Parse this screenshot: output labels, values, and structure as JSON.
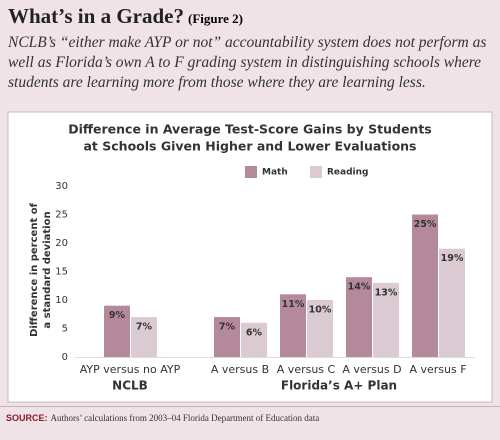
{
  "header": {
    "title": "What’s in a Grade?",
    "figure": "(Figure 2)",
    "text": "NCLB’s “either make AYP or not” accountability system does not perform as well as Florida’s own A to F grading system in distinguishing schools where students are learning more from those where they are learning less."
  },
  "chart_data": {
    "type": "bar",
    "title": [
      "Difference in Average Test-Score Gains by Students",
      "at Schools Given Higher and Lower Evaluations"
    ],
    "y_label": [
      "Difference in percent of",
      "a standard deviation"
    ],
    "categories": [
      "AYP versus no AYP",
      "A versus B",
      "A versus C",
      "A versus D",
      "A versus F"
    ],
    "groups": [
      {
        "name": "NCLB",
        "count": 1
      },
      {
        "name": "Florida’s A+ Plan",
        "count": 4
      }
    ],
    "series": [
      {
        "name": "Math",
        "color": "#b5899c",
        "values": [
          9,
          7,
          11,
          14,
          25
        ],
        "value_labels": [
          "9%",
          "7%",
          "11%",
          "14%",
          "25%"
        ]
      },
      {
        "name": "Reading",
        "color": "#dccad3",
        "values": [
          7,
          6,
          10,
          13,
          19
        ],
        "value_labels": [
          "7%",
          "6%",
          "10%",
          "13%",
          "19%"
        ]
      }
    ],
    "ylim": [
      0,
      30
    ],
    "yticks": [
      0,
      5,
      10,
      15,
      20,
      25,
      30
    ],
    "legend": "top"
  },
  "source": {
    "label": "SOURCE:",
    "text": "Authors’ calculations from 2003–04 Florida Department of Education data"
  }
}
